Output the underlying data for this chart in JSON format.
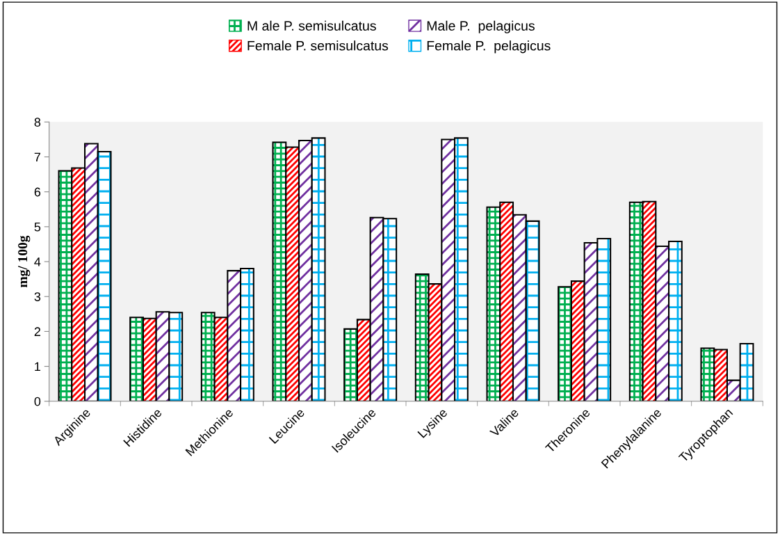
{
  "chart_data": {
    "type": "bar",
    "ylabel": "mg/ 100g",
    "categories": [
      "Arginine",
      "Histidine",
      "Methionine",
      "Leucine",
      "Isoleucine",
      "Lysine",
      "Valine",
      "Theronine",
      "Phenylalanine",
      "Tyroptophan"
    ],
    "series": [
      {
        "name": "M ale P. semisulcatus",
        "color": "#00b050",
        "values": [
          6.6,
          2.4,
          2.54,
          7.42,
          2.07,
          3.64,
          5.56,
          3.28,
          5.7,
          1.52
        ]
      },
      {
        "name": "Female P. semisulcatus",
        "color": "#ff0000",
        "values": [
          6.68,
          2.37,
          2.4,
          7.28,
          2.34,
          3.36,
          5.7,
          3.44,
          5.72,
          1.48
        ]
      },
      {
        "name": "Male P.  pelagicus",
        "color": "#7030a0",
        "values": [
          7.38,
          2.56,
          3.74,
          7.47,
          5.26,
          7.5,
          5.34,
          4.54,
          4.44,
          0.6
        ]
      },
      {
        "name": "Female P.  pelagicus",
        "color": "#00b0f0",
        "values": [
          7.15,
          2.54,
          3.8,
          7.54,
          5.23,
          7.54,
          5.16,
          4.66,
          4.58,
          1.65
        ]
      }
    ],
    "ylim": [
      0,
      8
    ],
    "yticks": [
      0,
      1,
      2,
      3,
      4,
      5,
      6,
      7,
      8
    ],
    "grid": false,
    "legend": "top"
  }
}
